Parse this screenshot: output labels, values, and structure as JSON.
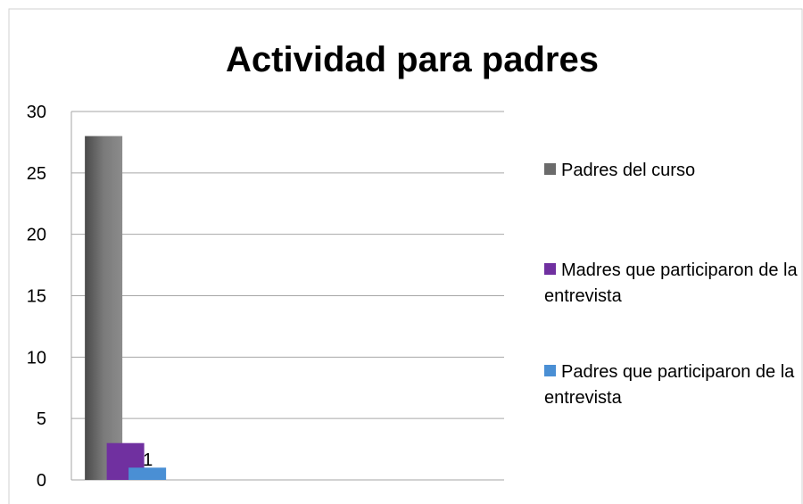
{
  "chart_data": {
    "type": "bar",
    "title": "Actividad para padres",
    "categories": [
      null,
      null,
      null,
      null
    ],
    "series": [
      {
        "name": "Padres del curso",
        "color": "#6b6b6b",
        "values": [
          28,
          null,
          null,
          null
        ]
      },
      {
        "name": "Madres que participaron de la entrevista",
        "color": "#7030a0",
        "values": [
          3,
          null,
          null,
          null
        ]
      },
      {
        "name": "Padres que participaron de la entrevista",
        "color": "#4a8fd4",
        "values": [
          1,
          null,
          null,
          null
        ],
        "show_value_labels": true
      }
    ],
    "ylim": [
      0,
      30
    ],
    "yticks": [
      0,
      5,
      10,
      15,
      20,
      25,
      30
    ],
    "grid": true,
    "legend": "right"
  }
}
